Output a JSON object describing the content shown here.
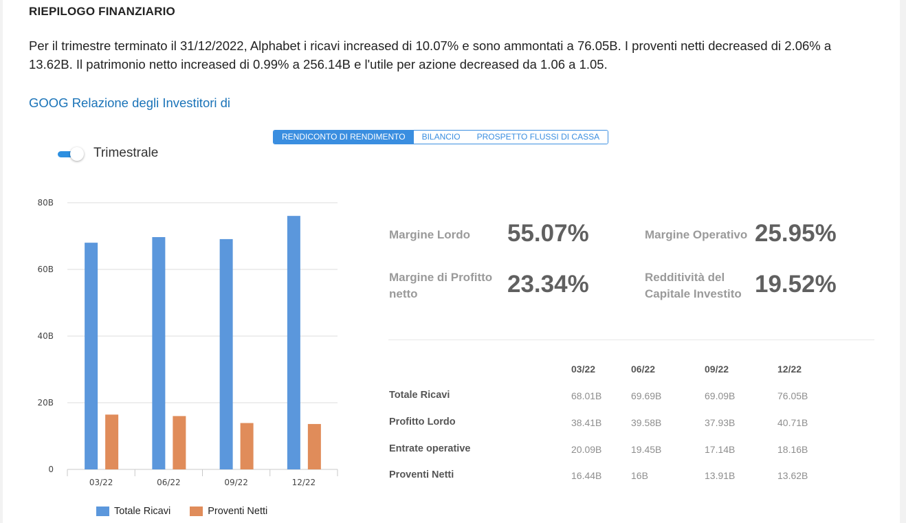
{
  "section_title": "RIEPILOGO FINANZIARIO",
  "summary": "Per il trimestre terminato il 31/12/2022, Alphabet i ricavi increased di 10.07% e sono ammontati a 76.05B. I proventi netti decreased di 2.06% a 13.62B. Il patrimonio netto increased di 0.99% a 256.14B e l'utile per azione decreased da 1.06 a 1.05.",
  "ir_link": "GOOG Relazione degli Investitori di",
  "tabs": [
    {
      "label": "RENDICONTO DI RENDIMENTO",
      "active": true
    },
    {
      "label": "BILANCIO",
      "active": false
    },
    {
      "label": "PROSPETTO FLUSSI DI CASSA",
      "active": false
    }
  ],
  "toggle": {
    "label": "Trimestrale",
    "on": true
  },
  "chart_data": {
    "type": "bar",
    "categories": [
      "03/22",
      "06/22",
      "09/22",
      "12/22"
    ],
    "series": [
      {
        "name": "Totale Ricavi",
        "values": [
          68.01,
          69.69,
          69.09,
          76.05
        ],
        "color": "#5b97dc"
      },
      {
        "name": "Proventi Netti",
        "values": [
          16.44,
          16,
          13.91,
          13.62
        ],
        "color": "#e08c5a"
      }
    ],
    "yticks": [
      "0",
      "20B",
      "40B",
      "60B",
      "80B"
    ],
    "ylim": [
      0,
      80
    ],
    "grid": true,
    "legend": "bottom"
  },
  "metrics": [
    {
      "label": "Margine Lordo",
      "value": "55.07%"
    },
    {
      "label": "Margine Operativo",
      "value": "25.95%"
    },
    {
      "label": "Margine di Profitto netto",
      "value": "23.34%"
    },
    {
      "label": "Redditività del Capitale Investito",
      "value": "19.52%"
    }
  ],
  "table": {
    "headers": [
      "03/22",
      "06/22",
      "09/22",
      "12/22"
    ],
    "rows": [
      {
        "label": "Totale Ricavi",
        "values": [
          "68.01B",
          "69.69B",
          "69.09B",
          "76.05B"
        ]
      },
      {
        "label": "Profitto Lordo",
        "values": [
          "38.41B",
          "39.58B",
          "37.93B",
          "40.71B"
        ]
      },
      {
        "label": "Entrate operative",
        "values": [
          "20.09B",
          "19.45B",
          "17.14B",
          "18.16B"
        ]
      },
      {
        "label": "Proventi Netti",
        "values": [
          "16.44B",
          "16B",
          "13.91B",
          "13.62B"
        ]
      }
    ]
  }
}
